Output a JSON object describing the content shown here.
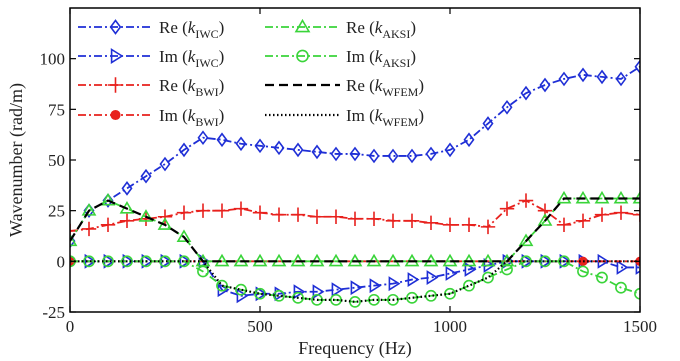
{
  "chart_data": {
    "type": "line",
    "title": "",
    "xlabel": "Frequency (Hz)",
    "ylabel": "Wavenumber (rad/m)",
    "xlim": [
      0,
      1500
    ],
    "ylim": [
      -25,
      125
    ],
    "xticks": [
      0,
      500,
      1000,
      1500
    ],
    "yticks": [
      -25,
      0,
      25,
      50,
      75,
      100
    ],
    "grid": false,
    "legend_placement": "top-left",
    "series": [
      {
        "name": "Re (k",
        "sub": "IWC",
        "suffix": ")",
        "color": "#1f2fd6",
        "dash": "8,3,2,3",
        "marker": "diamond",
        "x": [
          0,
          50,
          100,
          150,
          200,
          250,
          300,
          350,
          400,
          450,
          500,
          550,
          600,
          650,
          700,
          750,
          800,
          850,
          900,
          950,
          1000,
          1050,
          1100,
          1150,
          1200,
          1250,
          1300,
          1350,
          1400,
          1450,
          1500
        ],
        "y": [
          10,
          25,
          30,
          36,
          42,
          48,
          55,
          61,
          60,
          58,
          57,
          56,
          55,
          54,
          53,
          53,
          52,
          52,
          52,
          53,
          55,
          60,
          68,
          76,
          83,
          87,
          90,
          92,
          91,
          90,
          96
        ],
        "marker_x": [
          0,
          50,
          100,
          150,
          200,
          250,
          300,
          350,
          400,
          450,
          500,
          550,
          600,
          650,
          700,
          750,
          800,
          850,
          900,
          950,
          1000,
          1050,
          1100,
          1150,
          1200,
          1250,
          1300,
          1350,
          1400,
          1450,
          1500
        ],
        "marker_y": [
          10,
          25,
          30,
          36,
          42,
          48,
          55,
          61,
          60,
          58,
          57,
          56,
          55,
          54,
          53,
          53,
          52,
          52,
          52,
          53,
          55,
          60,
          68,
          76,
          83,
          87,
          90,
          92,
          91,
          90,
          96
        ]
      },
      {
        "name": "Im (k",
        "sub": "IWC",
        "suffix": ")",
        "color": "#1f2fd6",
        "dash": "8,3,2,3",
        "marker": "triangle-right",
        "x": [
          0,
          50,
          100,
          150,
          200,
          250,
          300,
          350,
          400,
          450,
          500,
          550,
          600,
          650,
          700,
          750,
          800,
          850,
          900,
          950,
          1000,
          1050,
          1100,
          1150,
          1200,
          1250,
          1300,
          1350,
          1400,
          1450,
          1500
        ],
        "y": [
          0,
          0,
          0,
          0,
          0,
          0,
          0,
          0,
          -14,
          -17,
          -16,
          -16,
          -15,
          -15,
          -14,
          -13,
          -12,
          -11,
          -9,
          -8,
          -6,
          -4,
          -2,
          0,
          0,
          0,
          0,
          0,
          0,
          -3,
          -3
        ],
        "marker_x": [
          0,
          50,
          100,
          150,
          200,
          250,
          300,
          350,
          400,
          450,
          500,
          550,
          600,
          650,
          700,
          750,
          800,
          850,
          900,
          950,
          1000,
          1050,
          1100,
          1150,
          1200,
          1250,
          1300,
          1350,
          1400,
          1450,
          1500
        ],
        "marker_y": [
          0,
          0,
          0,
          0,
          0,
          0,
          0,
          0,
          -14,
          -17,
          -16,
          -16,
          -15,
          -15,
          -14,
          -13,
          -12,
          -11,
          -9,
          -8,
          -6,
          -4,
          -2,
          0,
          0,
          0,
          0,
          0,
          0,
          -3,
          -3
        ]
      },
      {
        "name": "Re (k",
        "sub": "BWI",
        "suffix": ")",
        "color": "#e8211d",
        "dash": "8,3,2,3",
        "marker": "plus",
        "x": [
          0,
          50,
          100,
          150,
          200,
          250,
          300,
          350,
          400,
          450,
          500,
          550,
          600,
          650,
          700,
          750,
          800,
          850,
          900,
          950,
          1000,
          1050,
          1100,
          1150,
          1200,
          1250,
          1300,
          1350,
          1400,
          1450,
          1500
        ],
        "y": [
          15,
          16,
          18,
          20,
          21,
          22,
          24,
          25,
          25,
          26,
          24,
          23,
          23,
          22,
          22,
          21,
          21,
          20,
          20,
          19,
          18,
          18,
          17,
          26,
          30,
          25,
          18,
          20,
          23,
          24,
          23
        ],
        "marker_x": [
          0,
          50,
          100,
          150,
          200,
          250,
          300,
          350,
          400,
          450,
          500,
          550,
          600,
          650,
          700,
          750,
          800,
          850,
          900,
          950,
          1000,
          1050,
          1100,
          1150,
          1200,
          1250,
          1300,
          1350,
          1400,
          1450,
          1500
        ],
        "marker_y": [
          15,
          16,
          18,
          20,
          21,
          22,
          24,
          25,
          25,
          26,
          24,
          23,
          23,
          22,
          22,
          21,
          21,
          20,
          20,
          19,
          18,
          18,
          17,
          26,
          30,
          25,
          18,
          20,
          23,
          24,
          23
        ]
      },
      {
        "name": "Im (k",
        "sub": "BWI",
        "suffix": ")",
        "color": "#e8211d",
        "dash": "8,3,2,3",
        "marker": "dot",
        "x": [
          0,
          50,
          100,
          150,
          200,
          250,
          300,
          350,
          400,
          450,
          500,
          550,
          600,
          650,
          700,
          750,
          800,
          850,
          900,
          950,
          1000,
          1050,
          1100,
          1150,
          1200,
          1250,
          1300,
          1350,
          1400,
          1450,
          1500
        ],
        "y": [
          0,
          0,
          0,
          0,
          0,
          0,
          0,
          0,
          0,
          0,
          0,
          0,
          0,
          0,
          0,
          0,
          0,
          0,
          0,
          0,
          0,
          0,
          0,
          0,
          0,
          0,
          0,
          0,
          0,
          0,
          0
        ],
        "marker_x": [
          0,
          1350,
          1500
        ],
        "marker_y": [
          0,
          0,
          0
        ]
      },
      {
        "name": "Re (k",
        "sub": "AKSI",
        "suffix": ")",
        "color": "#3ad43a",
        "dash": "8,3,2,3",
        "marker": "triangle-up",
        "x": [
          0,
          50,
          100,
          150,
          200,
          250,
          300,
          350,
          400,
          450,
          500,
          550,
          600,
          650,
          700,
          750,
          800,
          850,
          900,
          950,
          1000,
          1050,
          1100,
          1150,
          1200,
          1250,
          1300,
          1350,
          1400,
          1450,
          1500
        ],
        "y": [
          10,
          25,
          30,
          26,
          22,
          18,
          12,
          0,
          0,
          0,
          0,
          0,
          0,
          0,
          0,
          0,
          0,
          0,
          0,
          0,
          0,
          0,
          0,
          0,
          10,
          20,
          31,
          31,
          31,
          31,
          31
        ],
        "marker_x": [
          0,
          50,
          100,
          150,
          200,
          250,
          300,
          350,
          400,
          450,
          500,
          550,
          600,
          650,
          700,
          750,
          800,
          850,
          900,
          950,
          1000,
          1050,
          1100,
          1150,
          1200,
          1250,
          1300,
          1350,
          1400,
          1450,
          1500
        ],
        "marker_y": [
          10,
          25,
          30,
          26,
          22,
          18,
          12,
          0,
          0,
          0,
          0,
          0,
          0,
          0,
          0,
          0,
          0,
          0,
          0,
          0,
          0,
          0,
          0,
          0,
          10,
          20,
          31,
          31,
          31,
          31,
          31
        ]
      },
      {
        "name": "Im (k",
        "sub": "AKSI",
        "suffix": ")",
        "color": "#3ad43a",
        "dash": "8,3,2,3",
        "marker": "circle",
        "x": [
          0,
          50,
          100,
          150,
          200,
          250,
          300,
          350,
          400,
          450,
          500,
          550,
          600,
          650,
          700,
          750,
          800,
          850,
          900,
          950,
          1000,
          1050,
          1100,
          1150,
          1200,
          1250,
          1300,
          1350,
          1400,
          1450,
          1500
        ],
        "y": [
          0,
          0,
          0,
          0,
          0,
          0,
          0,
          -5,
          -12,
          -14,
          -16,
          -17,
          -18,
          -19,
          -19,
          -20,
          -19,
          -19,
          -18,
          -17,
          -16,
          -12,
          -8,
          -4,
          0,
          0,
          0,
          -5,
          -8,
          -13,
          -16
        ],
        "marker_x": [
          0,
          50,
          100,
          150,
          200,
          250,
          300,
          350,
          400,
          450,
          500,
          550,
          600,
          650,
          700,
          750,
          800,
          850,
          900,
          950,
          1000,
          1050,
          1100,
          1150,
          1200,
          1250,
          1300,
          1350,
          1400,
          1450,
          1500
        ],
        "marker_y": [
          0,
          0,
          0,
          0,
          0,
          0,
          0,
          -5,
          -12,
          -14,
          -16,
          -17,
          -18,
          -19,
          -19,
          -20,
          -19,
          -19,
          -18,
          -17,
          -16,
          -12,
          -8,
          -4,
          0,
          0,
          0,
          -5,
          -8,
          -13,
          -16
        ]
      },
      {
        "name": "Re (k",
        "sub": "WFEM",
        "suffix": ")",
        "color": "#000000",
        "dash": "9,5",
        "marker": "none",
        "x": [
          0,
          50,
          100,
          150,
          200,
          250,
          300,
          350,
          1150,
          1250,
          1300,
          1350,
          1500
        ],
        "y": [
          10,
          25,
          30,
          26,
          22,
          18,
          12,
          0,
          0,
          20,
          31,
          31,
          31
        ]
      },
      {
        "name": "Im (k",
        "sub": "WFEM",
        "suffix": ")",
        "color": "#000000",
        "dash": "1.5,2.5",
        "marker": "none",
        "x": [
          0,
          350,
          400,
          450,
          500,
          550,
          600,
          650,
          700,
          750,
          800,
          850,
          900,
          950,
          1000,
          1050,
          1100,
          1150,
          1500
        ],
        "y": [
          0,
          0,
          -12,
          -14,
          -16,
          -17,
          -18,
          -19,
          -19,
          -20,
          -19,
          -19,
          -18,
          -17,
          -16,
          -12,
          -8,
          0,
          0
        ]
      }
    ]
  }
}
